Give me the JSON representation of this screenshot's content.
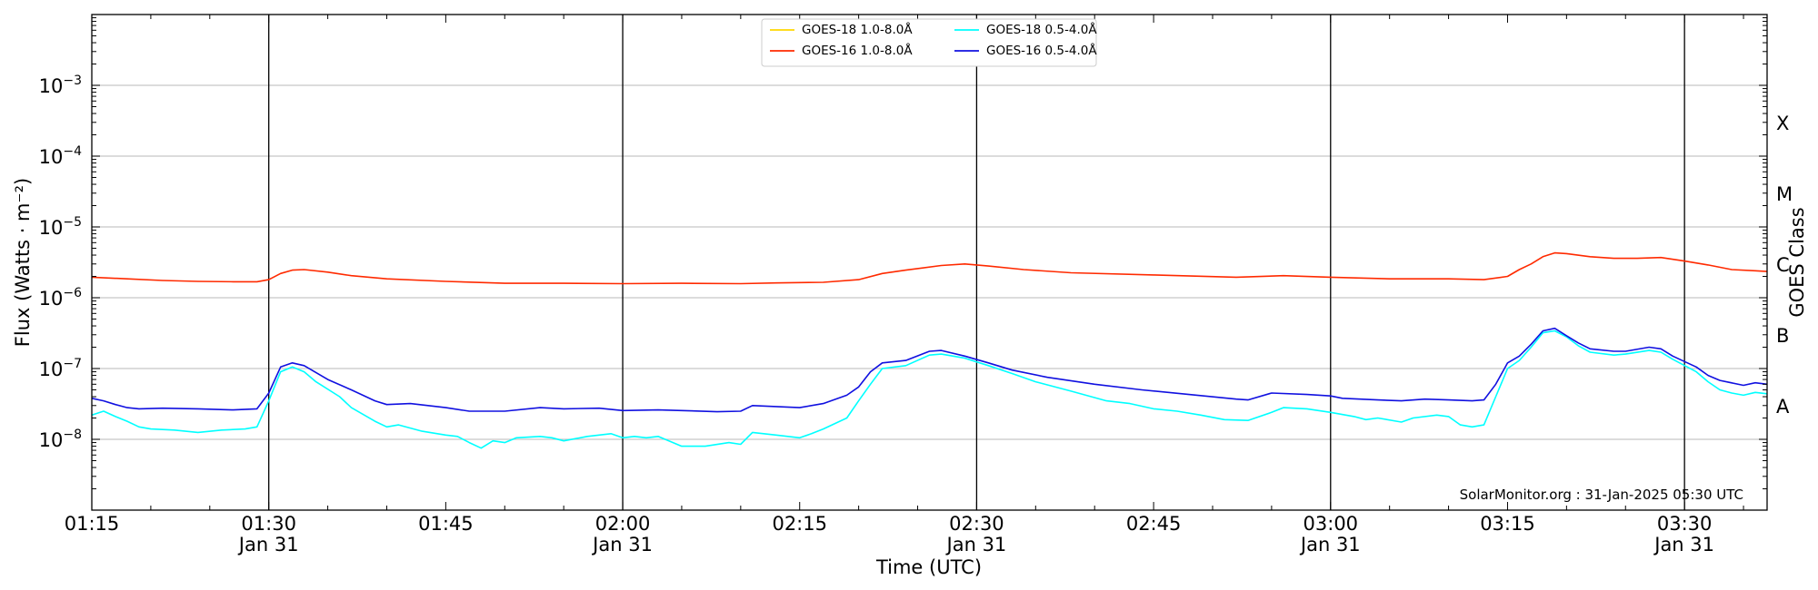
{
  "chart_data": {
    "type": "line",
    "xlabel": "Time (UTC)",
    "ylabel": "Flux (Watts · m⁻²)",
    "ylabel_right": "GOES Class",
    "y_scale": "log",
    "ylim": [
      1e-09,
      0.01
    ],
    "xlim": [
      "01:15",
      "03:37"
    ],
    "grid": "horizontal at decades",
    "legend_position": "top-center",
    "credit": "SolarMonitor.org : 31-Jan-2025 05:30 UTC",
    "x_ticks": [
      {
        "t": "01:15",
        "label": "01:15",
        "sub": ""
      },
      {
        "t": "01:30",
        "label": "01:30",
        "sub": "Jan 31"
      },
      {
        "t": "01:45",
        "label": "01:45",
        "sub": ""
      },
      {
        "t": "02:00",
        "label": "02:00",
        "sub": "Jan 31"
      },
      {
        "t": "02:15",
        "label": "02:15",
        "sub": ""
      },
      {
        "t": "02:30",
        "label": "02:30",
        "sub": "Jan 31"
      },
      {
        "t": "02:45",
        "label": "02:45",
        "sub": ""
      },
      {
        "t": "03:00",
        "label": "03:00",
        "sub": "Jan 31"
      },
      {
        "t": "03:15",
        "label": "03:15",
        "sub": ""
      },
      {
        "t": "03:30",
        "label": "03:30",
        "sub": "Jan 31"
      }
    ],
    "vertical_lines": [
      "01:30",
      "02:00",
      "02:30",
      "03:00",
      "03:30"
    ],
    "y_ticks": [
      {
        "v": 1e-08,
        "base": "10",
        "exp": "−8"
      },
      {
        "v": 1e-07,
        "base": "10",
        "exp": "−7"
      },
      {
        "v": 1e-06,
        "base": "10",
        "exp": "−6"
      },
      {
        "v": 1e-05,
        "base": "10",
        "exp": "−5"
      },
      {
        "v": 0.0001,
        "base": "10",
        "exp": "−4"
      },
      {
        "v": 0.001,
        "base": "10",
        "exp": "−3"
      }
    ],
    "goes_classes": [
      {
        "label": "A",
        "v": 3e-08
      },
      {
        "label": "B",
        "v": 3e-07
      },
      {
        "label": "C",
        "v": 3e-06
      },
      {
        "label": "M",
        "v": 3e-05
      },
      {
        "label": "X",
        "v": 0.0003
      }
    ],
    "series": [
      {
        "name": "GOES-18 1.0-8.0Å",
        "color": "#ffd700",
        "points": []
      },
      {
        "name": "GOES-16 1.0-8.0Å",
        "color": "#ff2a00",
        "points": [
          [
            "01:15",
            1.95e-06
          ],
          [
            "01:18",
            1.85e-06
          ],
          [
            "01:21",
            1.75e-06
          ],
          [
            "01:24",
            1.7e-06
          ],
          [
            "01:27",
            1.68e-06
          ],
          [
            "01:29",
            1.68e-06
          ],
          [
            "01:30",
            1.8e-06
          ],
          [
            "01:31",
            2.2e-06
          ],
          [
            "01:32",
            2.45e-06
          ],
          [
            "01:33",
            2.5e-06
          ],
          [
            "01:35",
            2.3e-06
          ],
          [
            "01:37",
            2.05e-06
          ],
          [
            "01:40",
            1.85e-06
          ],
          [
            "01:45",
            1.7e-06
          ],
          [
            "01:50",
            1.6e-06
          ],
          [
            "01:55",
            1.6e-06
          ],
          [
            "02:00",
            1.58e-06
          ],
          [
            "02:05",
            1.6e-06
          ],
          [
            "02:10",
            1.58e-06
          ],
          [
            "02:13",
            1.62e-06
          ],
          [
            "02:17",
            1.65e-06
          ],
          [
            "02:20",
            1.8e-06
          ],
          [
            "02:22",
            2.2e-06
          ],
          [
            "02:24",
            2.45e-06
          ],
          [
            "02:27",
            2.85e-06
          ],
          [
            "02:29",
            3e-06
          ],
          [
            "02:31",
            2.8e-06
          ],
          [
            "02:34",
            2.5e-06
          ],
          [
            "02:38",
            2.25e-06
          ],
          [
            "02:45",
            2.1e-06
          ],
          [
            "02:52",
            1.95e-06
          ],
          [
            "02:56",
            2.05e-06
          ],
          [
            "03:00",
            1.95e-06
          ],
          [
            "03:05",
            1.85e-06
          ],
          [
            "03:10",
            1.85e-06
          ],
          [
            "03:13",
            1.8e-06
          ],
          [
            "03:15",
            2e-06
          ],
          [
            "03:16",
            2.5e-06
          ],
          [
            "03:17",
            3e-06
          ],
          [
            "03:18",
            3.8e-06
          ],
          [
            "03:19",
            4.3e-06
          ],
          [
            "03:20",
            4.2e-06
          ],
          [
            "03:22",
            3.8e-06
          ],
          [
            "03:24",
            3.6e-06
          ],
          [
            "03:26",
            3.6e-06
          ],
          [
            "03:28",
            3.7e-06
          ],
          [
            "03:30",
            3.3e-06
          ],
          [
            "03:32",
            2.9e-06
          ],
          [
            "03:34",
            2.5e-06
          ],
          [
            "03:36",
            2.4e-06
          ],
          [
            "03:37",
            2.35e-06
          ]
        ]
      },
      {
        "name": "GOES-18 0.5-4.0Å",
        "color": "#00ffff",
        "points": [
          [
            "01:15",
            2.2e-08
          ],
          [
            "01:16",
            2.5e-08
          ],
          [
            "01:17",
            2.1e-08
          ],
          [
            "01:18",
            1.8e-08
          ],
          [
            "01:19",
            1.5e-08
          ],
          [
            "01:20",
            1.4e-08
          ],
          [
            "01:22",
            1.35e-08
          ],
          [
            "01:24",
            1.25e-08
          ],
          [
            "01:26",
            1.35e-08
          ],
          [
            "01:28",
            1.4e-08
          ],
          [
            "01:29",
            1.5e-08
          ],
          [
            "01:30",
            3.5e-08
          ],
          [
            "01:31",
            9e-08
          ],
          [
            "01:32",
            1.05e-07
          ],
          [
            "01:33",
            9e-08
          ],
          [
            "01:34",
            6.5e-08
          ],
          [
            "01:36",
            4e-08
          ],
          [
            "01:37",
            2.8e-08
          ],
          [
            "01:39",
            1.8e-08
          ],
          [
            "01:40",
            1.5e-08
          ],
          [
            "01:41",
            1.6e-08
          ],
          [
            "01:43",
            1.3e-08
          ],
          [
            "01:45",
            1.15e-08
          ],
          [
            "01:46",
            1.1e-08
          ],
          [
            "01:47",
            9e-09
          ],
          [
            "01:48",
            7.5e-09
          ],
          [
            "01:49",
            9.5e-09
          ],
          [
            "01:50",
            9e-09
          ],
          [
            "01:51",
            1.05e-08
          ],
          [
            "01:53",
            1.1e-08
          ],
          [
            "01:54",
            1.05e-08
          ],
          [
            "01:55",
            9.5e-09
          ],
          [
            "01:57",
            1.1e-08
          ],
          [
            "01:59",
            1.2e-08
          ],
          [
            "02:00",
            1.05e-08
          ],
          [
            "02:01",
            1.1e-08
          ],
          [
            "02:02",
            1.05e-08
          ],
          [
            "02:03",
            1.1e-08
          ],
          [
            "02:05",
            8e-09
          ],
          [
            "02:07",
            8e-09
          ],
          [
            "02:09",
            9e-09
          ],
          [
            "02:10",
            8.5e-09
          ],
          [
            "02:11",
            1.25e-08
          ],
          [
            "02:13",
            1.15e-08
          ],
          [
            "02:15",
            1.05e-08
          ],
          [
            "02:16",
            1.2e-08
          ],
          [
            "02:17",
            1.4e-08
          ],
          [
            "02:19",
            2e-08
          ],
          [
            "02:20",
            3.5e-08
          ],
          [
            "02:21",
            6e-08
          ],
          [
            "02:22",
            1e-07
          ],
          [
            "02:24",
            1.1e-07
          ],
          [
            "02:26",
            1.55e-07
          ],
          [
            "02:27",
            1.6e-07
          ],
          [
            "02:29",
            1.4e-07
          ],
          [
            "02:31",
            1.1e-07
          ],
          [
            "02:33",
            8.5e-08
          ],
          [
            "02:35",
            6.5e-08
          ],
          [
            "02:38",
            4.8e-08
          ],
          [
            "02:41",
            3.5e-08
          ],
          [
            "02:43",
            3.2e-08
          ],
          [
            "02:45",
            2.7e-08
          ],
          [
            "02:47",
            2.5e-08
          ],
          [
            "02:49",
            2.2e-08
          ],
          [
            "02:51",
            1.9e-08
          ],
          [
            "02:53",
            1.85e-08
          ],
          [
            "02:55",
            2.4e-08
          ],
          [
            "02:56",
            2.8e-08
          ],
          [
            "02:58",
            2.7e-08
          ],
          [
            "03:00",
            2.4e-08
          ],
          [
            "03:02",
            2.1e-08
          ],
          [
            "03:03",
            1.9e-08
          ],
          [
            "03:04",
            2e-08
          ],
          [
            "03:06",
            1.75e-08
          ],
          [
            "03:07",
            2e-08
          ],
          [
            "03:09",
            2.2e-08
          ],
          [
            "03:10",
            2.1e-08
          ],
          [
            "03:11",
            1.6e-08
          ],
          [
            "03:12",
            1.5e-08
          ],
          [
            "03:13",
            1.6e-08
          ],
          [
            "03:14",
            4e-08
          ],
          [
            "03:15",
            1e-07
          ],
          [
            "03:16",
            1.3e-07
          ],
          [
            "03:17",
            2e-07
          ],
          [
            "03:18",
            3.2e-07
          ],
          [
            "03:19",
            3.4e-07
          ],
          [
            "03:20",
            2.8e-07
          ],
          [
            "03:21",
            2.1e-07
          ],
          [
            "03:22",
            1.7e-07
          ],
          [
            "03:24",
            1.55e-07
          ],
          [
            "03:25",
            1.6e-07
          ],
          [
            "03:27",
            1.8e-07
          ],
          [
            "03:28",
            1.7e-07
          ],
          [
            "03:29",
            1.35e-07
          ],
          [
            "03:31",
            9e-08
          ],
          [
            "03:32",
            6.5e-08
          ],
          [
            "03:33",
            5e-08
          ],
          [
            "03:34",
            4.5e-08
          ],
          [
            "03:35",
            4.2e-08
          ],
          [
            "03:36",
            4.6e-08
          ],
          [
            "03:37",
            4.4e-08
          ]
        ]
      },
      {
        "name": "GOES-16 0.5-4.0Å",
        "color": "#1010e0",
        "points": [
          [
            "01:15",
            3.8e-08
          ],
          [
            "01:16",
            3.5e-08
          ],
          [
            "01:17",
            3.1e-08
          ],
          [
            "01:18",
            2.8e-08
          ],
          [
            "01:19",
            2.7e-08
          ],
          [
            "01:21",
            2.75e-08
          ],
          [
            "01:24",
            2.7e-08
          ],
          [
            "01:27",
            2.6e-08
          ],
          [
            "01:29",
            2.7e-08
          ],
          [
            "01:30",
            4.5e-08
          ],
          [
            "01:31",
            1.05e-07
          ],
          [
            "01:32",
            1.2e-07
          ],
          [
            "01:33",
            1.1e-07
          ],
          [
            "01:35",
            7e-08
          ],
          [
            "01:37",
            5e-08
          ],
          [
            "01:39",
            3.5e-08
          ],
          [
            "01:40",
            3.1e-08
          ],
          [
            "01:42",
            3.2e-08
          ],
          [
            "01:45",
            2.8e-08
          ],
          [
            "01:47",
            2.5e-08
          ],
          [
            "01:50",
            2.5e-08
          ],
          [
            "01:53",
            2.8e-08
          ],
          [
            "01:55",
            2.7e-08
          ],
          [
            "01:58",
            2.75e-08
          ],
          [
            "02:00",
            2.55e-08
          ],
          [
            "02:03",
            2.6e-08
          ],
          [
            "02:05",
            2.55e-08
          ],
          [
            "02:08",
            2.45e-08
          ],
          [
            "02:10",
            2.5e-08
          ],
          [
            "02:11",
            3e-08
          ],
          [
            "02:13",
            2.9e-08
          ],
          [
            "02:15",
            2.8e-08
          ],
          [
            "02:17",
            3.2e-08
          ],
          [
            "02:19",
            4.2e-08
          ],
          [
            "02:20",
            5.5e-08
          ],
          [
            "02:21",
            9e-08
          ],
          [
            "02:22",
            1.2e-07
          ],
          [
            "02:24",
            1.3e-07
          ],
          [
            "02:26",
            1.75e-07
          ],
          [
            "02:27",
            1.8e-07
          ],
          [
            "02:29",
            1.5e-07
          ],
          [
            "02:31",
            1.2e-07
          ],
          [
            "02:33",
            9.5e-08
          ],
          [
            "02:36",
            7.5e-08
          ],
          [
            "02:40",
            6e-08
          ],
          [
            "02:44",
            5e-08
          ],
          [
            "02:48",
            4.3e-08
          ],
          [
            "02:52",
            3.7e-08
          ],
          [
            "02:53",
            3.6e-08
          ],
          [
            "02:55",
            4.5e-08
          ],
          [
            "02:58",
            4.3e-08
          ],
          [
            "03:00",
            4.1e-08
          ],
          [
            "03:01",
            3.8e-08
          ],
          [
            "03:04",
            3.6e-08
          ],
          [
            "03:06",
            3.5e-08
          ],
          [
            "03:08",
            3.7e-08
          ],
          [
            "03:10",
            3.6e-08
          ],
          [
            "03:12",
            3.5e-08
          ],
          [
            "03:13",
            3.6e-08
          ],
          [
            "03:14",
            6e-08
          ],
          [
            "03:15",
            1.2e-07
          ],
          [
            "03:16",
            1.5e-07
          ],
          [
            "03:17",
            2.2e-07
          ],
          [
            "03:18",
            3.4e-07
          ],
          [
            "03:19",
            3.7e-07
          ],
          [
            "03:20",
            2.9e-07
          ],
          [
            "03:21",
            2.3e-07
          ],
          [
            "03:22",
            1.9e-07
          ],
          [
            "03:24",
            1.75e-07
          ],
          [
            "03:25",
            1.75e-07
          ],
          [
            "03:27",
            2e-07
          ],
          [
            "03:28",
            1.9e-07
          ],
          [
            "03:29",
            1.5e-07
          ],
          [
            "03:31",
            1.05e-07
          ],
          [
            "03:32",
            8e-08
          ],
          [
            "03:33",
            6.8e-08
          ],
          [
            "03:35",
            5.8e-08
          ],
          [
            "03:36",
            6.3e-08
          ],
          [
            "03:37",
            6e-08
          ]
        ]
      }
    ]
  }
}
